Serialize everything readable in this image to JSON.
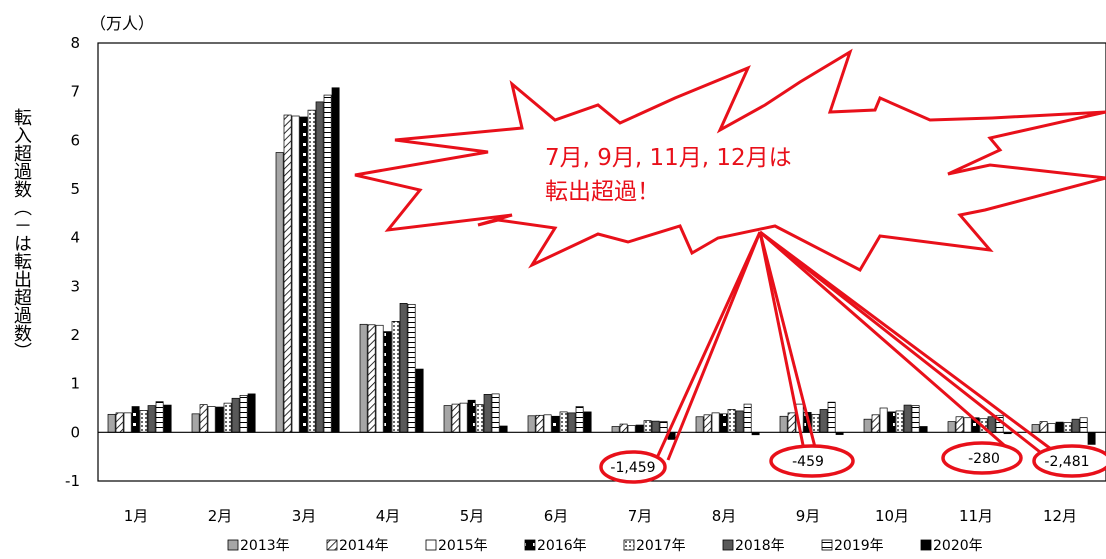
{
  "chart_data": {
    "type": "bar",
    "unit_label": "（万人）",
    "ylabel": "転入超過数（－は転出超過数）",
    "ylim": [
      -1,
      8
    ],
    "yticks": [
      "8",
      "7",
      "6",
      "5",
      "4",
      "3",
      "2",
      "1",
      "0",
      "-1"
    ],
    "categories": [
      "1月",
      "2月",
      "3月",
      "4月",
      "5月",
      "6月",
      "7月",
      "8月",
      "9月",
      "10月",
      "11月",
      "12月"
    ],
    "series": [
      {
        "name": "2013年",
        "pattern": "gray",
        "values": [
          0.37,
          0.38,
          5.75,
          2.22,
          0.55,
          0.34,
          0.12,
          0.32,
          0.33,
          0.27,
          0.22,
          0.16
        ]
      },
      {
        "name": "2014年",
        "pattern": "hatch",
        "values": [
          0.4,
          0.57,
          6.52,
          2.21,
          0.58,
          0.35,
          0.17,
          0.36,
          0.4,
          0.36,
          0.32,
          0.22
        ]
      },
      {
        "name": "2015年",
        "pattern": "white",
        "values": [
          0.4,
          0.53,
          6.5,
          2.2,
          0.6,
          0.36,
          0.14,
          0.4,
          0.58,
          0.5,
          0.3,
          0.18
        ]
      },
      {
        "name": "2016年",
        "pattern": "halfblack",
        "values": [
          0.53,
          0.52,
          6.48,
          2.07,
          0.66,
          0.33,
          0.15,
          0.38,
          0.41,
          0.42,
          0.3,
          0.21
        ]
      },
      {
        "name": "2017年",
        "pattern": "dots",
        "values": [
          0.45,
          0.6,
          6.62,
          2.28,
          0.57,
          0.42,
          0.24,
          0.47,
          0.37,
          0.44,
          0.28,
          0.2
        ]
      },
      {
        "name": "2018年",
        "pattern": "darkgray",
        "values": [
          0.55,
          0.7,
          6.79,
          2.65,
          0.78,
          0.4,
          0.23,
          0.44,
          0.47,
          0.56,
          0.32,
          0.27
        ]
      },
      {
        "name": "2019年",
        "pattern": "grid",
        "values": [
          0.63,
          0.76,
          6.93,
          2.63,
          0.79,
          0.53,
          0.22,
          0.58,
          0.62,
          0.55,
          0.35,
          0.3
        ]
      },
      {
        "name": "2020年",
        "pattern": "black",
        "values": [
          0.56,
          0.79,
          7.08,
          1.3,
          0.13,
          0.42,
          -0.1459,
          -0.05,
          -0.0459,
          0.12,
          -0.028,
          -0.2481
        ]
      }
    ],
    "annotations": {
      "callout_line1": "7月, 9月, 11月, 12月は",
      "callout_line2": "転出超過！",
      "value_labels": [
        {
          "text": "-1,459",
          "month": "7月"
        },
        {
          "text": "-459",
          "month": "9月"
        },
        {
          "text": "-280",
          "month": "11月"
        },
        {
          "text": "-2,481",
          "month": "12月"
        }
      ]
    },
    "grid": false,
    "legend_position": "bottom"
  }
}
